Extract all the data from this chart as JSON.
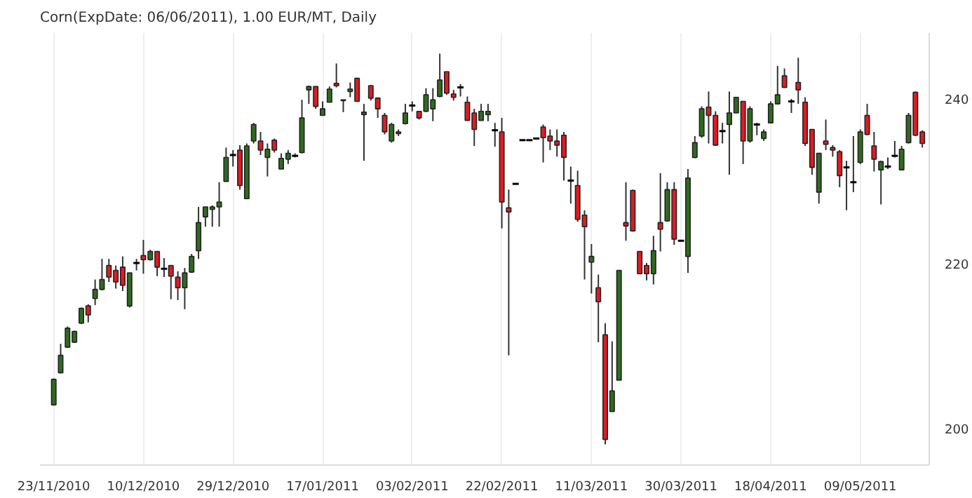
{
  "chart_data": {
    "type": "candlestick",
    "title": "Corn(ExpDate: 06/06/2011), 1.00 EUR/MT, Daily",
    "categories": [
      "23/11/2010",
      null,
      null,
      null,
      null,
      null,
      null,
      null,
      null,
      null,
      null,
      null,
      null,
      "10/12/2010",
      null,
      null,
      null,
      null,
      null,
      null,
      null,
      null,
      null,
      null,
      null,
      null,
      "29/12/2010",
      null,
      null,
      null,
      null,
      null,
      null,
      null,
      null,
      null,
      null,
      null,
      null,
      "17/01/2011",
      null,
      null,
      null,
      null,
      null,
      null,
      null,
      null,
      null,
      null,
      null,
      null,
      "03/02/2011",
      null,
      null,
      null,
      null,
      null,
      null,
      null,
      null,
      null,
      null,
      null,
      null,
      "22/02/2011",
      null,
      null,
      null,
      null,
      null,
      null,
      null,
      null,
      null,
      null,
      null,
      null,
      "11/03/2011",
      null,
      null,
      null,
      null,
      null,
      null,
      null,
      null,
      null,
      null,
      null,
      null,
      "30/03/2011",
      null,
      null,
      null,
      null,
      null,
      null,
      null,
      null,
      null,
      null,
      null,
      null,
      "18/04/2011",
      null,
      null,
      null,
      null,
      null,
      null,
      null,
      null,
      null,
      null,
      null,
      null,
      "09/05/2011",
      null,
      null,
      null,
      null,
      null,
      null,
      null,
      null,
      null
    ],
    "ohlc": [
      [
        202.9,
        206.1,
        202.8,
        206.0
      ],
      [
        206.8,
        210.3,
        206.7,
        208.9
      ],
      [
        209.9,
        212.4,
        209.8,
        212.2
      ],
      [
        210.5,
        211.9,
        210.4,
        211.8
      ],
      [
        212.8,
        214.7,
        212.7,
        214.6
      ],
      [
        214.9,
        215.1,
        212.9,
        213.8
      ],
      [
        215.8,
        218.1,
        215.0,
        216.9
      ],
      [
        216.9,
        220.6,
        216.8,
        218.1
      ],
      [
        219.8,
        220.6,
        217.8,
        218.4
      ],
      [
        219.2,
        219.8,
        217.0,
        217.8
      ],
      [
        219.6,
        220.9,
        216.7,
        217.4
      ],
      [
        214.9,
        218.9,
        214.7,
        218.9
      ],
      [
        220.1,
        220.6,
        219.2,
        220.1
      ],
      [
        221.0,
        222.9,
        218.8,
        220.5
      ],
      [
        220.5,
        221.7,
        220.4,
        221.5
      ],
      [
        221.5,
        221.5,
        218.5,
        219.6
      ],
      [
        219.4,
        220.7,
        218.4,
        219.4
      ],
      [
        219.8,
        219.8,
        215.7,
        218.5
      ],
      [
        218.4,
        219.1,
        215.6,
        217.1
      ],
      [
        217.1,
        219.5,
        214.5,
        218.9
      ],
      [
        219.0,
        221.2,
        218.9,
        220.9
      ],
      [
        221.6,
        226.9,
        220.6,
        225.0
      ],
      [
        225.7,
        226.9,
        224.5,
        226.9
      ],
      [
        226.6,
        227.1,
        224.5,
        226.9
      ],
      [
        226.9,
        229.9,
        224.5,
        227.5
      ],
      [
        230.0,
        234.1,
        230.0,
        232.9
      ],
      [
        233.2,
        233.8,
        231.8,
        233.2
      ],
      [
        233.8,
        234.4,
        229.0,
        229.5
      ],
      [
        227.9,
        234.6,
        227.9,
        234.3
      ],
      [
        234.9,
        237.1,
        234.6,
        236.9
      ],
      [
        234.9,
        236.0,
        233.2,
        233.8
      ],
      [
        232.9,
        234.6,
        230.6,
        233.9
      ],
      [
        235.0,
        235.2,
        233.5,
        233.8
      ],
      [
        231.5,
        233.4,
        231.5,
        232.8
      ],
      [
        232.7,
        233.8,
        232.1,
        233.4
      ],
      [
        233.1,
        233.4,
        232.9,
        233.1
      ],
      [
        233.5,
        239.9,
        233.4,
        237.7
      ],
      [
        241.1,
        241.6,
        239.4,
        241.5
      ],
      [
        241.5,
        241.5,
        238.8,
        239.1
      ],
      [
        238.0,
        239.7,
        238.0,
        238.8
      ],
      [
        239.6,
        241.5,
        239.6,
        241.2
      ],
      [
        241.9,
        244.3,
        241.4,
        241.6
      ],
      [
        239.9,
        239.9,
        238.4,
        239.8
      ],
      [
        240.9,
        242.0,
        240.2,
        241.2
      ],
      [
        242.5,
        242.5,
        239.7,
        239.7
      ],
      [
        238.1,
        239.4,
        232.5,
        238.4
      ],
      [
        241.6,
        241.7,
        239.8,
        240.1
      ],
      [
        240.1,
        240.2,
        237.7,
        238.8
      ],
      [
        238.0,
        238.3,
        235.7,
        236.0
      ],
      [
        234.9,
        237.1,
        234.7,
        236.9
      ],
      [
        236.0,
        236.3,
        235.5,
        235.8
      ],
      [
        237.0,
        239.4,
        236.9,
        238.3
      ],
      [
        239.2,
        239.7,
        238.5,
        239.2
      ],
      [
        238.5,
        238.5,
        237.5,
        237.7
      ],
      [
        238.5,
        241.3,
        238.4,
        240.5
      ],
      [
        238.8,
        241.3,
        237.3,
        239.9
      ],
      [
        240.3,
        245.5,
        240.2,
        242.3
      ],
      [
        243.3,
        243.3,
        240.5,
        240.7
      ],
      [
        240.6,
        241.1,
        239.8,
        240.2
      ],
      [
        241.4,
        241.8,
        240.3,
        241.4
      ],
      [
        239.6,
        240.3,
        237.4,
        237.4
      ],
      [
        238.3,
        238.8,
        234.3,
        236.3
      ],
      [
        237.4,
        239.4,
        237.4,
        238.5
      ],
      [
        238.1,
        239.4,
        237.3,
        238.5
      ],
      [
        236.2,
        237.1,
        234.2,
        236.2
      ],
      [
        236.0,
        237.7,
        224.3,
        227.5
      ],
      [
        226.8,
        229.0,
        208.9,
        226.3
      ],
      [
        229.7,
        229.7,
        229.7,
        229.7
      ],
      [
        235.0,
        235.0,
        235.0,
        235.0
      ],
      [
        235.0,
        235.0,
        235.0,
        235.0
      ],
      [
        235.2,
        235.2,
        235.2,
        235.2
      ],
      [
        236.6,
        236.9,
        232.3,
        235.3
      ],
      [
        235.5,
        236.3,
        233.8,
        234.9
      ],
      [
        234.9,
        236.3,
        233.0,
        234.4
      ],
      [
        235.6,
        236.0,
        230.1,
        232.9
      ],
      [
        230.1,
        231.8,
        227.3,
        230.1
      ],
      [
        229.5,
        231.3,
        225.1,
        225.4
      ],
      [
        225.9,
        226.5,
        218.1,
        224.5
      ],
      [
        220.2,
        222.4,
        216.4,
        220.9
      ],
      [
        217.1,
        218.7,
        210.5,
        215.4
      ],
      [
        211.4,
        212.8,
        198.1,
        198.7
      ],
      [
        202.1,
        210.6,
        202.1,
        204.6
      ],
      [
        205.9,
        219.2,
        205.9,
        219.2
      ],
      [
        225.0,
        229.9,
        222.8,
        224.6
      ],
      [
        228.9,
        229.0,
        223.9,
        224.0
      ],
      [
        221.5,
        221.5,
        218.8,
        218.8
      ],
      [
        219.8,
        220.1,
        218.0,
        218.8
      ],
      [
        218.8,
        223.4,
        217.5,
        221.6
      ],
      [
        225.0,
        231.0,
        221.5,
        224.2
      ],
      [
        225.2,
        229.9,
        225.1,
        229.0
      ],
      [
        229.0,
        229.9,
        222.3,
        223.0
      ],
      [
        222.8,
        222.8,
        222.8,
        222.8
      ],
      [
        220.9,
        231.5,
        218.9,
        230.4
      ],
      [
        232.9,
        235.5,
        232.8,
        234.7
      ],
      [
        235.5,
        239.1,
        235.3,
        238.8
      ],
      [
        239.0,
        240.9,
        234.6,
        238.0
      ],
      [
        238.0,
        238.5,
        234.3,
        234.4
      ],
      [
        236.1,
        237.1,
        234.6,
        236.1
      ],
      [
        236.9,
        240.9,
        230.8,
        238.3
      ],
      [
        238.3,
        240.2,
        238.3,
        240.2
      ],
      [
        239.7,
        239.7,
        232.1,
        234.9
      ],
      [
        234.9,
        239.1,
        234.7,
        238.8
      ],
      [
        236.9,
        237.1,
        235.6,
        236.9
      ],
      [
        235.2,
        236.3,
        234.9,
        236.0
      ],
      [
        237.1,
        239.7,
        237.1,
        239.4
      ],
      [
        239.4,
        244.0,
        239.4,
        240.5
      ],
      [
        242.8,
        243.7,
        241.4,
        241.4
      ],
      [
        239.7,
        240.0,
        238.3,
        239.7
      ],
      [
        242.0,
        245.0,
        239.4,
        241.1
      ],
      [
        239.6,
        240.2,
        234.3,
        234.6
      ],
      [
        236.3,
        236.3,
        230.8,
        231.7
      ],
      [
        228.7,
        233.4,
        227.3,
        233.4
      ],
      [
        234.9,
        237.5,
        233.8,
        234.5
      ],
      [
        234.1,
        234.4,
        233.0,
        233.8
      ],
      [
        233.6,
        233.8,
        229.3,
        230.7
      ],
      [
        231.7,
        232.5,
        226.5,
        231.7
      ],
      [
        229.9,
        235.5,
        228.7,
        229.9
      ],
      [
        232.3,
        236.3,
        232.1,
        236.0
      ],
      [
        238.0,
        239.4,
        235.6,
        235.7
      ],
      [
        234.3,
        236.0,
        231.2,
        232.7
      ],
      [
        231.4,
        232.5,
        227.2,
        232.4
      ],
      [
        231.8,
        232.9,
        231.5,
        231.8
      ],
      [
        233.1,
        234.9,
        232.9,
        233.1
      ],
      [
        231.4,
        234.3,
        231.4,
        233.9
      ],
      [
        234.7,
        238.3,
        234.6,
        238.0
      ],
      [
        240.8,
        240.9,
        235.5,
        235.6
      ],
      [
        236.0,
        236.2,
        234.1,
        234.6
      ]
    ],
    "colors": [
      "#2f6b1f",
      "#2f6b1f",
      "#2f6b1f",
      "#2f6b1f",
      "#2f6b1f",
      "#e01b22",
      "#2f6b1f",
      "#2f6b1f",
      "#e01b22",
      "#e01b22",
      "#e01b22",
      "#2f6b1f",
      "#000000",
      "#e01b22",
      "#2f6b1f",
      "#e01b22",
      "#000000",
      "#e01b22",
      "#e01b22",
      "#2f6b1f",
      "#2f6b1f",
      "#2f6b1f",
      "#2f6b1f",
      "#2f6b1f",
      "#2f6b1f",
      "#2f6b1f",
      "#000000",
      "#e01b22",
      "#2f6b1f",
      "#2f6b1f",
      "#e01b22",
      "#2f6b1f",
      "#e01b22",
      "#2f6b1f",
      "#2f6b1f",
      "#000000",
      "#2f6b1f",
      "#2f6b1f",
      "#e01b22",
      "#2f6b1f",
      "#2f6b1f",
      "#e01b22",
      "#e01b22",
      "#2f6b1f",
      "#e01b22",
      "#2f6b1f",
      "#e01b22",
      "#e01b22",
      "#e01b22",
      "#2f6b1f",
      "#e01b22",
      "#2f6b1f",
      "#000000",
      "#e01b22",
      "#2f6b1f",
      "#2f6b1f",
      "#2f6b1f",
      "#e01b22",
      "#e01b22",
      "#000000",
      "#e01b22",
      "#e01b22",
      "#2f6b1f",
      "#2f6b1f",
      "#000000",
      "#e01b22",
      "#e01b22",
      "#000000",
      "#000000",
      "#000000",
      "#000000",
      "#e01b22",
      "#e01b22",
      "#e01b22",
      "#e01b22",
      "#000000",
      "#e01b22",
      "#e01b22",
      "#2f6b1f",
      "#e01b22",
      "#e01b22",
      "#2f6b1f",
      "#2f6b1f",
      "#e01b22",
      "#e01b22",
      "#e01b22",
      "#e01b22",
      "#2f6b1f",
      "#e01b22",
      "#2f6b1f",
      "#e01b22",
      "#000000",
      "#2f6b1f",
      "#2f6b1f",
      "#2f6b1f",
      "#e01b22",
      "#e01b22",
      "#000000",
      "#2f6b1f",
      "#2f6b1f",
      "#e01b22",
      "#2f6b1f",
      "#000000",
      "#2f6b1f",
      "#2f6b1f",
      "#2f6b1f",
      "#e01b22",
      "#000000",
      "#e01b22",
      "#e01b22",
      "#e01b22",
      "#2f6b1f",
      "#e01b22",
      "#e01b22",
      "#e01b22",
      "#000000",
      "#000000",
      "#2f6b1f",
      "#e01b22",
      "#e01b22",
      "#2f6b1f",
      "#000000",
      "#000000",
      "#2f6b1f",
      "#2f6b1f",
      "#e01b22",
      "#e01b22"
    ],
    "ylim": [
      195.6,
      248.0
    ],
    "yticks": [
      200,
      220,
      240
    ],
    "grid": "x"
  }
}
